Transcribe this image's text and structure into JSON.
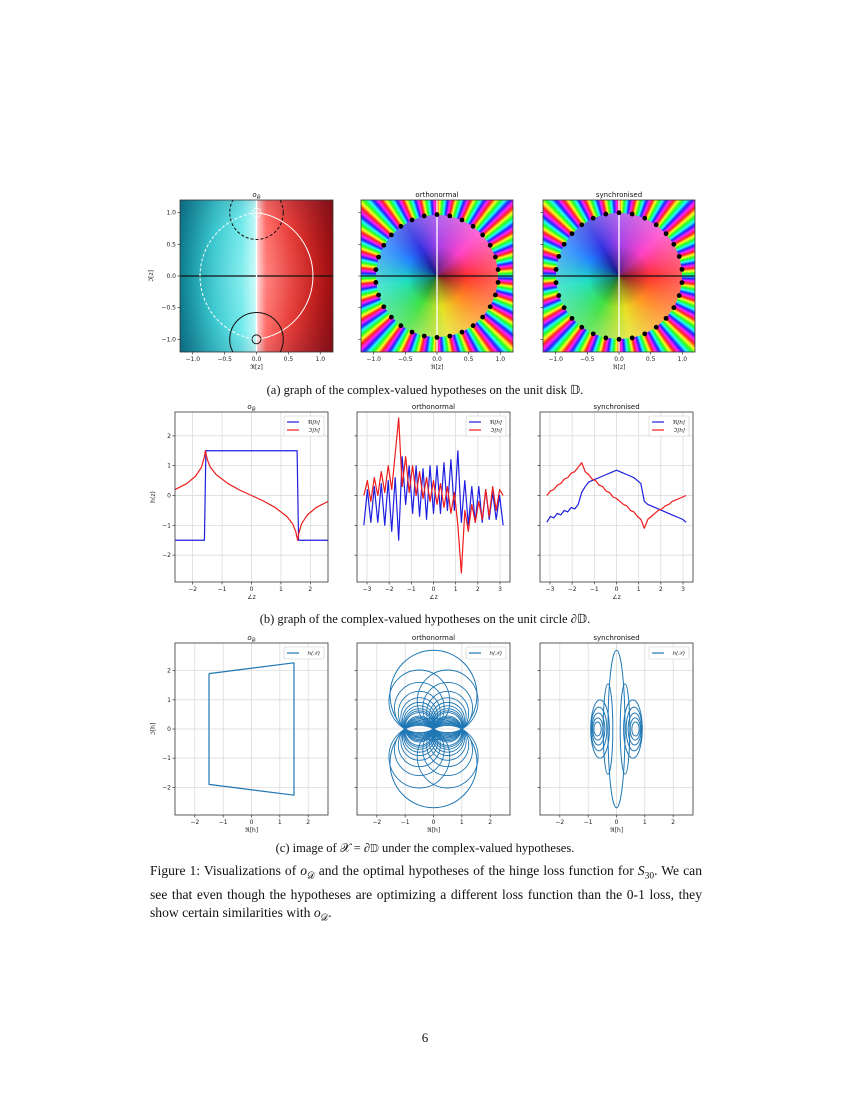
{
  "captions": {
    "a": "(a) graph of the complex-valued hypotheses on the unit disk 𝔻.",
    "b": "(b) graph of the complex-valued hypotheses on the unit circle ∂𝔻.",
    "c": "(c) image of 𝒳 = ∂𝔻 under the complex-valued hypotheses."
  },
  "figure_caption": {
    "p1": "Figure 1: Visualizations of ",
    "o": "o",
    "o_sub": "𝒟",
    "p2": " and the optimal hypotheses of the hinge loss function for ",
    "s": "S",
    "s_sub": "30",
    "p3": ". We can see that even though the hypotheses are optimizing a different loss function than the 0-1 loss, they show certain similarities with ",
    "o2": "o",
    "o2_sub": "𝒟",
    "p4": "."
  },
  "page_number": "6",
  "colors": {
    "real": "#1f1fe0",
    "imag": "#ee1c1c",
    "image": "#1f77b4",
    "grid": "#d6d6d6"
  },
  "chart_data": [
    {
      "type": "heatmap",
      "colormap": "hue-phase",
      "title": "o",
      "title_sub": "𝒟",
      "xlabel": "ℜ[z]",
      "ylabel": "ℑ[z]",
      "xlim": [
        -1.2,
        1.2
      ],
      "ylim": [
        -1.2,
        1.2
      ],
      "xticks": [
        -1,
        -0.5,
        0,
        0.5,
        1
      ],
      "xtick_labels": [
        "−1.0",
        "−0.5",
        "0.0",
        "0.5",
        "1.0"
      ],
      "yticks": [
        -1,
        -0.5,
        0,
        0.5,
        1
      ],
      "ytick_labels": [
        "−1.0",
        "−0.5",
        "0.0",
        "0.5",
        "1.0"
      ],
      "grid": false
    },
    {
      "type": "heatmap",
      "colormap": "hue-phase",
      "title": "orthonormal",
      "xlabel": "ℜ[z]",
      "ylabel": "",
      "xlim": [
        -1.2,
        1.2
      ],
      "ylim": [
        -1.2,
        1.2
      ],
      "xticks": [
        -1,
        -0.5,
        0,
        0.5,
        1
      ],
      "xtick_labels": [
        "−1.0",
        "−0.5",
        "0.0",
        "0.5",
        "1.0"
      ],
      "yticks": [
        -1,
        -0.5,
        0,
        0.5,
        1
      ],
      "grid": false,
      "zero_markers": 30,
      "zero_radius": 0.97
    },
    {
      "type": "heatmap",
      "colormap": "hue-phase",
      "title": "synchronised",
      "xlabel": "ℜ[z]",
      "ylabel": "",
      "xlim": [
        -1.2,
        1.2
      ],
      "ylim": [
        -1.2,
        1.2
      ],
      "xticks": [
        -1,
        -0.5,
        0,
        0.5,
        1
      ],
      "xtick_labels": [
        "−1.0",
        "−0.5",
        "0.0",
        "0.5",
        "1.0"
      ],
      "yticks": [
        -1,
        -0.5,
        0,
        0.5,
        1
      ],
      "grid": false,
      "zero_markers": 30,
      "zero_radius": 1.0
    },
    {
      "type": "line",
      "title": "o",
      "title_sub": "𝒟",
      "xlabel": "∠z",
      "ylabel": "h(z)",
      "xlim": [
        -2.6,
        2.6
      ],
      "ylim": [
        -2.9,
        2.8
      ],
      "xticks": [
        -2,
        -1,
        0,
        1,
        2
      ],
      "xtick_labels": [
        "−2",
        "−1",
        "0",
        "1",
        "2"
      ],
      "yticks": [
        -2,
        -1,
        0,
        1,
        2
      ],
      "ytick_labels": [
        "−2",
        "−1",
        "0",
        "1",
        "2"
      ],
      "grid": true,
      "legend": "top-right",
      "series": [
        {
          "name": "ℜ[h]",
          "color": "real",
          "x": [
            -2.6,
            -1.6,
            -1.55,
            1.55,
            1.6,
            2.6
          ],
          "y": [
            -1.5,
            -1.5,
            1.5,
            1.5,
            -1.5,
            -1.5
          ]
        },
        {
          "name": "ℑ[h]",
          "color": "imag",
          "x": [
            -2.6,
            -2.2,
            -1.9,
            -1.7,
            -1.6,
            -1.57,
            -1.5,
            -1.4,
            -1.2,
            -0.8,
            -0.4,
            0,
            0.4,
            0.8,
            1.2,
            1.4,
            1.5,
            1.57,
            1.6,
            1.7,
            1.9,
            2.2,
            2.6
          ],
          "y": [
            0.2,
            0.4,
            0.65,
            0.95,
            1.3,
            1.5,
            1.2,
            0.95,
            0.7,
            0.4,
            0.18,
            0,
            -0.18,
            -0.4,
            -0.7,
            -0.95,
            -1.2,
            -1.5,
            -1.3,
            -0.95,
            -0.65,
            -0.4,
            -0.2
          ]
        }
      ]
    },
    {
      "type": "line",
      "title": "orthonormal",
      "xlabel": "∠z",
      "ylabel": "",
      "xlim": [
        -3.45,
        3.45
      ],
      "ylim": [
        -2.9,
        2.8
      ],
      "xticks": [
        -3,
        -2,
        -1,
        0,
        1,
        2,
        3
      ],
      "xtick_labels": [
        "−3",
        "−2",
        "−1",
        "0",
        "1",
        "2",
        "3"
      ],
      "yticks": [
        -2,
        -1,
        0,
        1,
        2
      ],
      "grid": true,
      "legend": "top-right",
      "x_start": -3.14,
      "x_end": 3.14,
      "series": [
        {
          "name": "ℜ[h]",
          "color": "real",
          "y": [
            -1,
            0.2,
            -0.9,
            0.3,
            -0.9,
            0.4,
            -1.0,
            0.5,
            -1.2,
            0.6,
            -1.5,
            1.3,
            -0.3,
            1.0,
            -0.6,
            1.0,
            -0.7,
            0.9,
            -0.8,
            1.0,
            -0.6,
            1.0,
            -0.6,
            1.1,
            -0.5,
            1.2,
            -0.5,
            1.5,
            -0.9,
            0.5,
            -1.0,
            0.3,
            -0.9,
            0.3,
            -0.9,
            0.2,
            -0.8,
            0.1,
            -0.8,
            0.0,
            -1.0
          ]
        },
        {
          "name": "ℑ[h]",
          "color": "imag",
          "y": [
            0,
            0.5,
            -0.2,
            0.6,
            0,
            0.8,
            0.1,
            1.0,
            0.2,
            1.4,
            2.6,
            0.3,
            1.3,
            0.1,
            1.0,
            0,
            0.8,
            -0.1,
            0.6,
            -0.2,
            0.5,
            -0.3,
            0.4,
            -0.4,
            0.3,
            -0.6,
            0.1,
            -1.0,
            -2.6,
            -0.5,
            -1.2,
            -0.3,
            -0.9,
            -0.2,
            -0.8,
            0.2,
            -0.7,
            0.3,
            -0.5,
            0.2,
            0
          ]
        }
      ]
    },
    {
      "type": "line",
      "title": "synchronised",
      "xlabel": "∠z",
      "ylabel": "",
      "xlim": [
        -3.45,
        3.45
      ],
      "ylim": [
        -2.9,
        2.8
      ],
      "xticks": [
        -3,
        -2,
        -1,
        0,
        1,
        2,
        3
      ],
      "xtick_labels": [
        "−3",
        "−2",
        "−1",
        "0",
        "1",
        "2",
        "3"
      ],
      "yticks": [
        -2,
        -1,
        0,
        1,
        2
      ],
      "grid": true,
      "legend": "top-right",
      "x_start": -3.14,
      "x_end": 3.14,
      "series": [
        {
          "name": "ℜ[h]",
          "color": "real",
          "y": [
            -0.9,
            -0.7,
            -0.75,
            -0.6,
            -0.65,
            -0.5,
            -0.55,
            -0.4,
            -0.45,
            -0.3,
            0.1,
            0.3,
            0.45,
            0.5,
            0.55,
            0.6,
            0.65,
            0.7,
            0.75,
            0.8,
            0.85,
            0.8,
            0.75,
            0.7,
            0.65,
            0.6,
            0.5,
            0.4,
            -0.2,
            -0.3,
            -0.35,
            -0.4,
            -0.45,
            -0.5,
            -0.55,
            -0.6,
            -0.65,
            -0.7,
            -0.75,
            -0.8,
            -0.9
          ]
        },
        {
          "name": "ℑ[h]",
          "color": "imag",
          "y": [
            0,
            0.15,
            0.2,
            0.35,
            0.4,
            0.55,
            0.6,
            0.75,
            0.8,
            0.95,
            1.1,
            0.8,
            0.7,
            0.55,
            0.5,
            0.35,
            0.3,
            0.15,
            0.1,
            -0.05,
            -0.1,
            -0.2,
            -0.3,
            -0.35,
            -0.5,
            -0.55,
            -0.7,
            -0.8,
            -1.1,
            -0.8,
            -0.7,
            -0.6,
            -0.5,
            -0.45,
            -0.35,
            -0.3,
            -0.2,
            -0.15,
            -0.1,
            -0.05,
            0
          ]
        }
      ]
    },
    {
      "type": "line",
      "title": "o",
      "title_sub": "𝒟",
      "xlabel": "ℜ[h]",
      "ylabel": "ℑ[h]",
      "xlim": [
        -2.7,
        2.7
      ],
      "ylim": [
        -2.95,
        2.95
      ],
      "xticks": [
        -2,
        -1,
        0,
        1,
        2
      ],
      "xtick_labels": [
        "−2",
        "−1",
        "0",
        "1",
        "2"
      ],
      "yticks": [
        -2,
        -1,
        0,
        1,
        2
      ],
      "ytick_labels": [
        "−2",
        "−1",
        "0",
        "1",
        "2"
      ],
      "grid": true,
      "legend": "top-right",
      "series": [
        {
          "name": "h(𝒳)",
          "color": "image",
          "x": [
            -1.5,
            1.5,
            1.5,
            -1.5,
            -1.5
          ],
          "y": [
            1.9,
            2.27,
            -2.27,
            -1.9,
            1.9
          ]
        }
      ]
    },
    {
      "type": "line",
      "title": "orthonormal",
      "xlabel": "ℜ[h]",
      "ylabel": "",
      "xlim": [
        -2.7,
        2.7
      ],
      "ylim": [
        -2.95,
        2.95
      ],
      "xticks": [
        -2,
        -1,
        0,
        1,
        2
      ],
      "xtick_labels": [
        "−2",
        "−1",
        "0",
        "1",
        "2"
      ],
      "yticks": [
        -2,
        -1,
        0,
        1,
        2
      ],
      "grid": true,
      "legend": "top-right",
      "series": [
        {
          "name": "h(𝒳)",
          "color": "image",
          "circles": [
            [
              0,
              1.165,
              1.535
            ],
            [
              0,
              -1.165,
              1.535
            ]
          ],
          "lobe_heights": [
            0.95,
            0.72,
            0.55,
            0.42,
            0.32,
            0.24,
            0.17,
            0.11,
            0.06
          ]
        }
      ]
    },
    {
      "type": "line",
      "title": "synchronised",
      "xlabel": "ℜ[h]",
      "ylabel": "",
      "xlim": [
        -2.7,
        2.7
      ],
      "ylim": [
        -2.95,
        2.95
      ],
      "xticks": [
        -2,
        -1,
        0,
        1,
        2
      ],
      "xtick_labels": [
        "−2",
        "−1",
        "0",
        "1",
        "2"
      ],
      "yticks": [
        -2,
        -1,
        0,
        1,
        2
      ],
      "grid": true,
      "legend": "top-right",
      "series": [
        {
          "name": "h(𝒳)",
          "color": "image",
          "ellipses": [
            [
              0,
              0,
              0.3,
              2.7
            ],
            [
              -0.3,
              0,
              0.17,
              1.55
            ],
            [
              0.3,
              0,
              0.17,
              1.55
            ],
            [
              -0.58,
              0,
              0.33,
              1.0
            ],
            [
              0.58,
              0,
              0.33,
              1.0
            ],
            [
              -0.62,
              0,
              0.28,
              0.75
            ],
            [
              0.62,
              0,
              0.28,
              0.75
            ],
            [
              -0.64,
              0,
              0.23,
              0.55
            ],
            [
              0.64,
              0,
              0.23,
              0.55
            ],
            [
              -0.66,
              0,
              0.18,
              0.38
            ],
            [
              0.66,
              0,
              0.18,
              0.38
            ],
            [
              -0.67,
              0,
              0.13,
              0.24
            ],
            [
              0.67,
              0,
              0.13,
              0.24
            ]
          ]
        }
      ]
    }
  ]
}
